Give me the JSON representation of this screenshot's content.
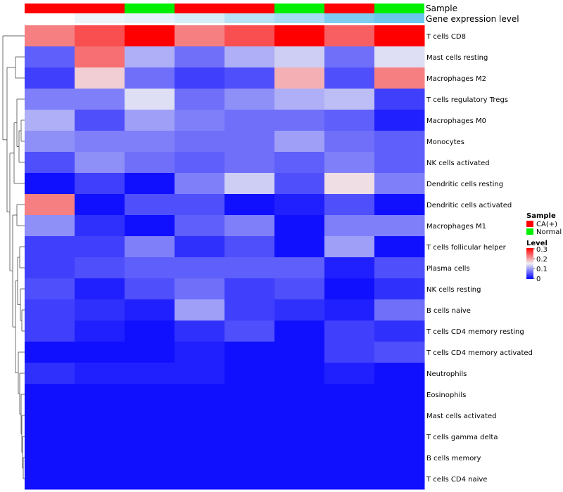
{
  "chart_data": {
    "type": "heatmap",
    "column_annotation_labels": {
      "sample": "Sample",
      "expression": "Gene expression level"
    },
    "columns": [
      {
        "sample": "CA(+)",
        "expression_color": "#FFFFFF"
      },
      {
        "sample": "CA(+)",
        "expression_color": "#EEF6FB"
      },
      {
        "sample": "Normal",
        "expression_color": "#E6F2F9"
      },
      {
        "sample": "CA(+)",
        "expression_color": "#D6EEF8"
      },
      {
        "sample": "CA(+)",
        "expression_color": "#B8E2F5"
      },
      {
        "sample": "Normal",
        "expression_color": "#A6DCF3"
      },
      {
        "sample": "CA(+)",
        "expression_color": "#7CCDF0"
      },
      {
        "sample": "Normal",
        "expression_color": "#6BC6EE"
      }
    ],
    "rows": [
      "T cells CD8",
      "Mast cells resting",
      "Macrophages M2",
      "T cells regulatory  Tregs",
      "Macrophages M0",
      "Monocytes",
      "NK cells activated",
      "Dendritic cells resting",
      "Dendritic cells activated",
      "Macrophages M1",
      "T cells follicular helper",
      "Plasma cells",
      "NK cells resting",
      "B cells naive",
      "T cells CD4 memory resting",
      "T cells CD4 memory activated",
      "Neutrophils",
      "Eosinophils",
      "Mast cells activated",
      "T cells gamma delta",
      "B cells memory",
      "T cells CD4 naive"
    ],
    "values": [
      [
        0.22,
        0.25,
        0.3,
        0.22,
        0.25,
        0.3,
        0.24,
        0.3
      ],
      [
        0.06,
        0.23,
        0.11,
        0.07,
        0.11,
        0.13,
        0.07,
        0.14
      ],
      [
        0.04,
        0.17,
        0.07,
        0.04,
        0.05,
        0.19,
        0.05,
        0.22
      ],
      [
        0.08,
        0.08,
        0.14,
        0.07,
        0.09,
        0.11,
        0.12,
        0.04
      ],
      [
        0.11,
        0.05,
        0.1,
        0.08,
        0.07,
        0.07,
        0.06,
        0.02
      ],
      [
        0.09,
        0.08,
        0.08,
        0.07,
        0.07,
        0.1,
        0.07,
        0.06
      ],
      [
        0.05,
        0.09,
        0.07,
        0.06,
        0.07,
        0.06,
        0.08,
        0.06
      ],
      [
        0.01,
        0.04,
        0.01,
        0.08,
        0.13,
        0.05,
        0.16,
        0.08
      ],
      [
        0.22,
        0.01,
        0.05,
        0.05,
        0.01,
        0.02,
        0.05,
        0.01
      ],
      [
        0.09,
        0.03,
        0.01,
        0.06,
        0.08,
        0.01,
        0.08,
        0.08
      ],
      [
        0.04,
        0.04,
        0.08,
        0.03,
        0.05,
        0.01,
        0.1,
        0.01
      ],
      [
        0.04,
        0.05,
        0.06,
        0.06,
        0.06,
        0.06,
        0.02,
        0.05
      ],
      [
        0.05,
        0.02,
        0.05,
        0.07,
        0.04,
        0.05,
        0.01,
        0.03
      ],
      [
        0.04,
        0.03,
        0.02,
        0.1,
        0.04,
        0.03,
        0.02,
        0.07
      ],
      [
        0.04,
        0.02,
        0.01,
        0.03,
        0.05,
        0.01,
        0.04,
        0.03
      ],
      [
        0.01,
        0.01,
        0.01,
        0.02,
        0.01,
        0.01,
        0.04,
        0.05
      ],
      [
        0.03,
        0.02,
        0.02,
        0.02,
        0.01,
        0.01,
        0.02,
        0.01
      ],
      [
        0.01,
        0.01,
        0.01,
        0.01,
        0.01,
        0.01,
        0.01,
        0.01
      ],
      [
        0.01,
        0.01,
        0.01,
        0.01,
        0.01,
        0.01,
        0.01,
        0.01
      ],
      [
        0.01,
        0.01,
        0.01,
        0.01,
        0.01,
        0.01,
        0.01,
        0.01
      ],
      [
        0.01,
        0.01,
        0.01,
        0.01,
        0.01,
        0.01,
        0.01,
        0.01
      ],
      [
        0.01,
        0.01,
        0.01,
        0.01,
        0.01,
        0.01,
        0.01,
        0.01
      ]
    ],
    "color_scale": {
      "min": 0,
      "max": 0.3,
      "low": "#0000FF",
      "mid": "#EEEEF4",
      "mid_value": 0.15,
      "high": "#FF0000"
    },
    "legend": {
      "sample_title": "Sample",
      "sample_entries": [
        {
          "label": "CA(+)",
          "color": "#FF0000"
        },
        {
          "label": "Normal",
          "color": "#00EE00"
        }
      ],
      "level_title": "Level",
      "level_ticks": [
        "0.3",
        "0.2",
        "0.1",
        "0"
      ]
    }
  }
}
